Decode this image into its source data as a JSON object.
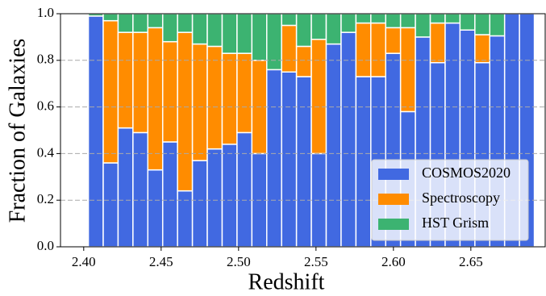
{
  "chart_data": {
    "type": "stacked_histogram",
    "xlabel": "Redshift",
    "ylabel": "Fraction of Galaxies",
    "bins": [
      2.403,
      2.4126,
      2.4222,
      2.4318,
      2.4414,
      2.451,
      2.4606,
      2.4702,
      2.4798,
      2.4894,
      2.499,
      2.5086,
      2.5182,
      2.5278,
      2.5374,
      2.547,
      2.5566,
      2.5662,
      2.5758,
      2.5854,
      2.595,
      2.6046,
      2.6142,
      2.6238,
      2.6334,
      2.643,
      2.6526,
      2.6622,
      2.6718,
      2.6814,
      2.691
    ],
    "series": [
      {
        "name": "COSMOS2020",
        "color": "#4169e1",
        "values": [
          0.99,
          0.36,
          0.51,
          0.49,
          0.33,
          0.45,
          0.24,
          0.37,
          0.42,
          0.44,
          0.49,
          0.4,
          0.76,
          0.75,
          0.73,
          0.4,
          0.87,
          0.92,
          0.73,
          0.73,
          0.83,
          0.58,
          0.9,
          0.79,
          0.96,
          0.93,
          0.79,
          0.905,
          1.0,
          1.0
        ]
      },
      {
        "name": "Spectroscopy",
        "color": "#ff8c00",
        "values": [
          0,
          0.61,
          0.41,
          0.43,
          0.61,
          0.43,
          0.68,
          0.5,
          0.44,
          0.39,
          0.34,
          0.4,
          0,
          0.2,
          0.13,
          0.49,
          0,
          0,
          0.23,
          0.23,
          0.11,
          0.36,
          0,
          0.17,
          0,
          0,
          0.12,
          0,
          0,
          0
        ]
      },
      {
        "name": "HST Grism",
        "color": "#3cb371",
        "values": [
          0.01,
          0.03,
          0.08,
          0.08,
          0.06,
          0.12,
          0.08,
          0.13,
          0.14,
          0.17,
          0.17,
          0.2,
          0.24,
          0.05,
          0.14,
          0.11,
          0.13,
          0.08,
          0.04,
          0.04,
          0.06,
          0.06,
          0.1,
          0.04,
          0.04,
          0.07,
          0.09,
          0.095,
          0,
          0
        ]
      }
    ],
    "xlim": [
      2.385,
      2.698
    ],
    "ylim": [
      0,
      1
    ],
    "xticks": [
      {
        "value": 2.4,
        "label": "2.40"
      },
      {
        "value": 2.45,
        "label": "2.45"
      },
      {
        "value": 2.5,
        "label": "2.50"
      },
      {
        "value": 2.55,
        "label": "2.55"
      },
      {
        "value": 2.6,
        "label": "2.60"
      },
      {
        "value": 2.65,
        "label": "2.65"
      }
    ],
    "yticks": [
      {
        "value": 0,
        "label": "0.0"
      },
      {
        "value": 0.2,
        "label": "0.2"
      },
      {
        "value": 0.4,
        "label": "0.4"
      },
      {
        "value": 0.6,
        "label": "0.6"
      },
      {
        "value": 0.8,
        "label": "0.8"
      },
      {
        "value": 1,
        "label": "1.0"
      }
    ],
    "grid": true,
    "legend": "lower right"
  }
}
